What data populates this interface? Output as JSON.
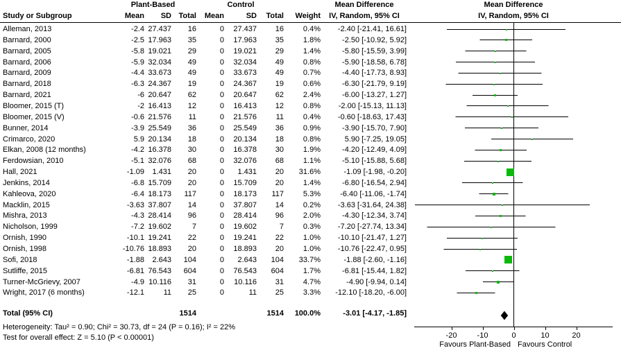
{
  "figure": {
    "group1_label": "Plant-Based",
    "group2_label": "Control",
    "columns": {
      "study": "Study or Subgroup",
      "mean": "Mean",
      "sd": "SD",
      "total": "Total",
      "weight": "Weight",
      "md_line1": "Mean Difference",
      "md_line2": "IV, Random, 95% CI"
    },
    "plot_header": {
      "line1": "Mean Difference",
      "line2": "IV, Random, 95% CI"
    },
    "rows": [
      [
        "Alleman, 2013",
        "-2.4",
        "27.437",
        "16",
        "0",
        "27.437",
        "16",
        "0.4%",
        "-2.40 [-21.41, 16.61]"
      ],
      [
        "Barnard, 2000",
        "-2.5",
        "17.963",
        "35",
        "0",
        "17.963",
        "35",
        "1.8%",
        "-2.50 [-10.92, 5.92]"
      ],
      [
        "Barnard, 2005",
        "-5.8",
        "19.021",
        "29",
        "0",
        "19.021",
        "29",
        "1.4%",
        "-5.80 [-15.59, 3.99]"
      ],
      [
        "Barnard, 2006",
        "-5.9",
        "32.034",
        "49",
        "0",
        "32.034",
        "49",
        "0.8%",
        "-5.90 [-18.58, 6.78]"
      ],
      [
        "Barnard, 2009",
        "-4.4",
        "33.673",
        "49",
        "0",
        "33.673",
        "49",
        "0.7%",
        "-4.40 [-17.73, 8.93]"
      ],
      [
        "Barnard, 2018",
        "-6.3",
        "24.367",
        "19",
        "0",
        "24.367",
        "19",
        "0.6%",
        "-6.30 [-21.79, 9.19]"
      ],
      [
        "Barnard, 2021",
        "-6",
        "20.647",
        "62",
        "0",
        "20.647",
        "62",
        "2.4%",
        "-6.00 [-13.27, 1.27]"
      ],
      [
        "Bloomer, 2015 (T)",
        "-2",
        "16.413",
        "12",
        "0",
        "16.413",
        "12",
        "0.8%",
        "-2.00 [-15.13, 11.13]"
      ],
      [
        "Bloomer, 2015 (V)",
        "-0.6",
        "21.576",
        "11",
        "0",
        "21.576",
        "11",
        "0.4%",
        "-0.60 [-18.63, 17.43]"
      ],
      [
        "Bunner, 2014",
        "-3.9",
        "25.549",
        "36",
        "0",
        "25.549",
        "36",
        "0.9%",
        "-3.90 [-15.70, 7.90]"
      ],
      [
        "Crimarco, 2020",
        "5.9",
        "20.134",
        "18",
        "0",
        "20.134",
        "18",
        "0.8%",
        "5.90 [-7.25, 19.05]"
      ],
      [
        "Elkan, 2008 (12 months)",
        "-4.2",
        "16.378",
        "30",
        "0",
        "16.378",
        "30",
        "1.9%",
        "-4.20 [-12.49, 4.09]"
      ],
      [
        "Ferdowsian, 2010",
        "-5.1",
        "32.076",
        "68",
        "0",
        "32.076",
        "68",
        "1.1%",
        "-5.10 [-15.88, 5.68]"
      ],
      [
        "Hall, 2021",
        "-1.09",
        "1.431",
        "20",
        "0",
        "1.431",
        "20",
        "31.6%",
        "-1.09 [-1.98, -0.20]"
      ],
      [
        "Jenkins, 2014",
        "-6.8",
        "15.709",
        "20",
        "0",
        "15.709",
        "20",
        "1.4%",
        "-6.80 [-16.54, 2.94]"
      ],
      [
        "Kahleova, 2020",
        "-6.4",
        "18.173",
        "117",
        "0",
        "18.173",
        "117",
        "5.3%",
        "-6.40 [-11.06, -1.74]"
      ],
      [
        "Macklin, 2015",
        "-3.63",
        "37.807",
        "14",
        "0",
        "37.807",
        "14",
        "0.2%",
        "-3.63 [-31.64, 24.38]"
      ],
      [
        "Mishra, 2013",
        "-4.3",
        "28.414",
        "96",
        "0",
        "28.414",
        "96",
        "2.0%",
        "-4.30 [-12.34, 3.74]"
      ],
      [
        "Nicholson, 1999",
        "-7.2",
        "19.602",
        "7",
        "0",
        "19.602",
        "7",
        "0.3%",
        "-7.20 [-27.74, 13.34]"
      ],
      [
        "Ornish, 1990",
        "-10.1",
        "19.241",
        "22",
        "0",
        "19.241",
        "22",
        "1.0%",
        "-10.10 [-21.47, 1.27]"
      ],
      [
        "Ornish, 1998",
        "-10.76",
        "18.893",
        "20",
        "0",
        "18.893",
        "20",
        "1.0%",
        "-10.76 [-22.47, 0.95]"
      ],
      [
        "Sofi, 2018",
        "-1.88",
        "2.643",
        "104",
        "0",
        "2.643",
        "104",
        "33.7%",
        "-1.88 [-2.60, -1.16]"
      ],
      [
        "Sutliffe, 2015",
        "-6.81",
        "76.543",
        "604",
        "0",
        "76.543",
        "604",
        "1.7%",
        "-6.81 [-15.44, 1.82]"
      ],
      [
        "Turner-McGrievy, 2007",
        "-4.9",
        "10.116",
        "31",
        "0",
        "10.116",
        "31",
        "4.7%",
        "-4.90 [-9.94, 0.14]"
      ],
      [
        "Wright, 2017 (6 months)",
        "-12.1",
        "11",
        "25",
        "0",
        "11",
        "25",
        "3.3%",
        "-12.10 [-18.20, -6.00]"
      ]
    ],
    "total_row": {
      "label": "Total (95% CI)",
      "total1": "1514",
      "total2": "1514",
      "weight": "100.0%",
      "md": "-3.01 [-4.17, -1.85]"
    },
    "footnotes": {
      "heterogeneity": "Heterogeneity: Tau² = 0.90; Chi² = 30.73, df = 24 (P = 0.16); I² = 22%",
      "overall_effect": "Test for overall effect: Z = 5.10 (P < 0.00001)"
    },
    "axis": {
      "favours_left": "Favours Plant-Based",
      "favours_right": "Favours Control"
    },
    "colors": {
      "marker_green": "#0db80d",
      "line_black": "#000000"
    }
  },
  "chart_data": {
    "type": "scatter",
    "subtype": "forest-plot",
    "title": "Mean Difference, IV, Random, 95% CI",
    "effect_measure": "Mean Difference",
    "model": "IV, Random, 95% CI",
    "xlim": [
      -32,
      32
    ],
    "x_ticks": [
      -20,
      -10,
      0,
      10,
      20
    ],
    "x_label_left": "Favours Plant-Based",
    "x_label_right": "Favours Control",
    "grid": false,
    "points": [
      {
        "study": "Alleman, 2013",
        "estimate": -2.4,
        "ci_low": -21.41,
        "ci_high": 16.61,
        "weight_pct": 0.4
      },
      {
        "study": "Barnard, 2000",
        "estimate": -2.5,
        "ci_low": -10.92,
        "ci_high": 5.92,
        "weight_pct": 1.8
      },
      {
        "study": "Barnard, 2005",
        "estimate": -5.8,
        "ci_low": -15.59,
        "ci_high": 3.99,
        "weight_pct": 1.4
      },
      {
        "study": "Barnard, 2006",
        "estimate": -5.9,
        "ci_low": -18.58,
        "ci_high": 6.78,
        "weight_pct": 0.8
      },
      {
        "study": "Barnard, 2009",
        "estimate": -4.4,
        "ci_low": -17.73,
        "ci_high": 8.93,
        "weight_pct": 0.7
      },
      {
        "study": "Barnard, 2018",
        "estimate": -6.3,
        "ci_low": -21.79,
        "ci_high": 9.19,
        "weight_pct": 0.6
      },
      {
        "study": "Barnard, 2021",
        "estimate": -6.0,
        "ci_low": -13.27,
        "ci_high": 1.27,
        "weight_pct": 2.4
      },
      {
        "study": "Bloomer, 2015 (T)",
        "estimate": -2.0,
        "ci_low": -15.13,
        "ci_high": 11.13,
        "weight_pct": 0.8
      },
      {
        "study": "Bloomer, 2015 (V)",
        "estimate": -0.6,
        "ci_low": -18.63,
        "ci_high": 17.43,
        "weight_pct": 0.4
      },
      {
        "study": "Bunner, 2014",
        "estimate": -3.9,
        "ci_low": -15.7,
        "ci_high": 7.9,
        "weight_pct": 0.9
      },
      {
        "study": "Crimarco, 2020",
        "estimate": 5.9,
        "ci_low": -7.25,
        "ci_high": 19.05,
        "weight_pct": 0.8
      },
      {
        "study": "Elkan, 2008 (12 months)",
        "estimate": -4.2,
        "ci_low": -12.49,
        "ci_high": 4.09,
        "weight_pct": 1.9
      },
      {
        "study": "Ferdowsian, 2010",
        "estimate": -5.1,
        "ci_low": -15.88,
        "ci_high": 5.68,
        "weight_pct": 1.1
      },
      {
        "study": "Hall, 2021",
        "estimate": -1.09,
        "ci_low": -1.98,
        "ci_high": -0.2,
        "weight_pct": 31.6
      },
      {
        "study": "Jenkins, 2014",
        "estimate": -6.8,
        "ci_low": -16.54,
        "ci_high": 2.94,
        "weight_pct": 1.4
      },
      {
        "study": "Kahleova, 2020",
        "estimate": -6.4,
        "ci_low": -11.06,
        "ci_high": -1.74,
        "weight_pct": 5.3
      },
      {
        "study": "Macklin, 2015",
        "estimate": -3.63,
        "ci_low": -31.64,
        "ci_high": 24.38,
        "weight_pct": 0.2
      },
      {
        "study": "Mishra, 2013",
        "estimate": -4.3,
        "ci_low": -12.34,
        "ci_high": 3.74,
        "weight_pct": 2.0
      },
      {
        "study": "Nicholson, 1999",
        "estimate": -7.2,
        "ci_low": -27.74,
        "ci_high": 13.34,
        "weight_pct": 0.3
      },
      {
        "study": "Ornish, 1990",
        "estimate": -10.1,
        "ci_low": -21.47,
        "ci_high": 1.27,
        "weight_pct": 1.0
      },
      {
        "study": "Ornish, 1998",
        "estimate": -10.76,
        "ci_low": -22.47,
        "ci_high": 0.95,
        "weight_pct": 1.0
      },
      {
        "study": "Sofi, 2018",
        "estimate": -1.88,
        "ci_low": -2.6,
        "ci_high": -1.16,
        "weight_pct": 33.7
      },
      {
        "study": "Sutliffe, 2015",
        "estimate": -6.81,
        "ci_low": -15.44,
        "ci_high": 1.82,
        "weight_pct": 1.7
      },
      {
        "study": "Turner-McGrievy, 2007",
        "estimate": -4.9,
        "ci_low": -9.94,
        "ci_high": 0.14,
        "weight_pct": 4.7
      },
      {
        "study": "Wright, 2017 (6 months)",
        "estimate": -12.1,
        "ci_low": -18.2,
        "ci_high": -6.0,
        "weight_pct": 3.3
      }
    ],
    "total": {
      "label": "Total (95% CI)",
      "estimate": -3.01,
      "ci_low": -4.17,
      "ci_high": -1.85,
      "weight_pct": 100.0,
      "n_plant_based": 1514,
      "n_control": 1514
    },
    "heterogeneity": {
      "tau2": 0.9,
      "chi2": 30.73,
      "df": 24,
      "p": "0.16",
      "i2_pct": 22
    },
    "overall_effect": {
      "z": 5.1,
      "p": "< 0.00001"
    }
  }
}
